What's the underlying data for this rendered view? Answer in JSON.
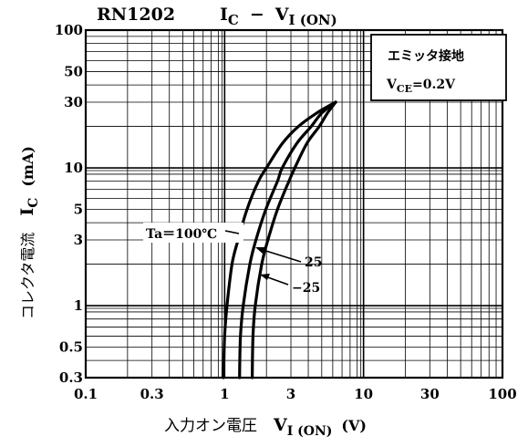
{
  "chart_data": {
    "type": "line",
    "part_number": "RN1202",
    "title": {
      "main": "I",
      "main_sub": "C",
      "dash": "−",
      "var": "V",
      "var_sub": "I (ON)"
    },
    "xlabel": {
      "jp": "入力オン電圧",
      "var": "V",
      "var_sub": "I (ON)",
      "unit": "(V)"
    },
    "ylabel": {
      "jp": "コレクタ電流",
      "var": "I",
      "var_sub": "C",
      "unit": "(mA)"
    },
    "x_scale": "log",
    "y_scale": "log",
    "xlim": [
      0.1,
      100
    ],
    "ylim": [
      0.3,
      100
    ],
    "x_ticks": [
      {
        "value": 0.1,
        "label": "0.1"
      },
      {
        "value": 0.3,
        "label": "0.3"
      },
      {
        "value": 1,
        "label": "1"
      },
      {
        "value": 3,
        "label": "3"
      },
      {
        "value": 10,
        "label": "10"
      },
      {
        "value": 30,
        "label": "30"
      },
      {
        "value": 100,
        "label": "100"
      }
    ],
    "y_ticks": [
      {
        "value": 0.3,
        "label": "0.3"
      },
      {
        "value": 0.5,
        "label": "0.5"
      },
      {
        "value": 1,
        "label": "1"
      },
      {
        "value": 3,
        "label": "3"
      },
      {
        "value": 5,
        "label": "5"
      },
      {
        "value": 10,
        "label": "10"
      },
      {
        "value": 30,
        "label": "30"
      },
      {
        "value": 50,
        "label": "50"
      },
      {
        "value": 100,
        "label": "100"
      }
    ],
    "grid": true,
    "condition_box": {
      "line1": "エミッタ接地",
      "line2_var": "V",
      "line2_sub": "CE",
      "line2_val": "=0.2V"
    },
    "series": [
      {
        "name": "Ta=100°C",
        "points": [
          [
            0.98,
            0.3
          ],
          [
            1.0,
            0.6
          ],
          [
            1.04,
            1.0
          ],
          [
            1.13,
            2.0
          ],
          [
            1.25,
            3.0
          ],
          [
            1.45,
            5.0
          ],
          [
            1.75,
            8.0
          ],
          [
            2.0,
            10.0
          ],
          [
            2.6,
            15.0
          ],
          [
            3.4,
            20.0
          ],
          [
            4.6,
            25.0
          ],
          [
            6.3,
            30.0
          ]
        ]
      },
      {
        "name": "25",
        "points": [
          [
            1.28,
            0.3
          ],
          [
            1.3,
            0.6
          ],
          [
            1.36,
            1.0
          ],
          [
            1.52,
            2.0
          ],
          [
            1.68,
            3.0
          ],
          [
            1.98,
            5.0
          ],
          [
            2.4,
            8.0
          ],
          [
            2.6,
            10.0
          ],
          [
            3.3,
            15.0
          ],
          [
            4.2,
            20.0
          ],
          [
            5.0,
            25.0
          ],
          [
            6.3,
            30.0
          ]
        ]
      },
      {
        "name": "−25",
        "points": [
          [
            1.58,
            0.3
          ],
          [
            1.6,
            0.6
          ],
          [
            1.66,
            1.0
          ],
          [
            1.85,
            2.0
          ],
          [
            2.05,
            3.0
          ],
          [
            2.4,
            5.0
          ],
          [
            2.9,
            8.0
          ],
          [
            3.2,
            10.0
          ],
          [
            3.9,
            15.0
          ],
          [
            4.8,
            20.0
          ],
          [
            5.5,
            25.0
          ],
          [
            6.3,
            30.0
          ]
        ]
      }
    ],
    "series_labels": [
      {
        "series": "Ta=100°C",
        "text": "Ta＝100℃"
      },
      {
        "series": "25",
        "text": "25"
      },
      {
        "series": "−25",
        "text": "−25"
      }
    ]
  }
}
